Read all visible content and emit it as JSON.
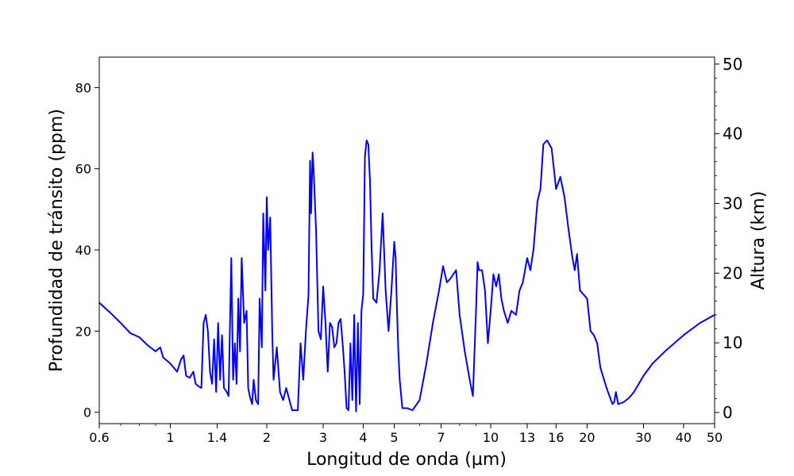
{
  "chart_data": {
    "type": "line",
    "xlabel": "Longitud de onda (µm)",
    "ylabel": "Profundidad de tránsito (ppm)",
    "ylabel_right": "Altura (km)",
    "x_scale": "log",
    "xlim": [
      0.6,
      50
    ],
    "ylim": [
      -2.8,
      87.5
    ],
    "ylim_right": [
      -1.6,
      51.0
    ],
    "x_ticks": [
      0.6,
      1,
      1.4,
      2,
      3,
      4,
      5,
      7,
      10,
      13,
      16,
      20,
      30,
      40,
      50
    ],
    "x_tick_labels": [
      "0.6",
      "1",
      "1.4",
      "2",
      "3",
      "4",
      "5",
      "7",
      "10",
      "13",
      "16",
      "20",
      "30",
      "40",
      "50"
    ],
    "y_ticks": [
      0,
      20,
      40,
      60,
      80
    ],
    "y_tick_labels": [
      "0",
      "20",
      "40",
      "60",
      "80"
    ],
    "y_right_ticks": [
      0,
      10,
      20,
      30,
      40,
      50
    ],
    "y_right_tick_labels": [
      "0",
      "10",
      "20",
      "30",
      "40",
      "50"
    ],
    "grid": false,
    "line_color": "#0000ff",
    "series": [
      {
        "x": [
          0.6,
          0.65,
          0.7,
          0.75,
          0.8,
          0.85,
          0.9,
          0.93,
          0.95,
          1.0,
          1.05,
          1.08,
          1.1,
          1.12,
          1.15,
          1.18,
          1.2,
          1.22,
          1.25,
          1.27,
          1.29,
          1.31,
          1.33,
          1.35,
          1.37,
          1.39,
          1.41,
          1.43,
          1.45,
          1.47,
          1.5,
          1.52,
          1.55,
          1.57,
          1.59,
          1.61,
          1.63,
          1.65,
          1.67,
          1.7,
          1.73,
          1.75,
          1.77,
          1.8,
          1.82,
          1.85,
          1.88,
          1.9,
          1.93,
          1.95,
          1.98,
          2.0,
          2.02,
          2.05,
          2.08,
          2.1,
          2.15,
          2.2,
          2.25,
          2.3,
          2.4,
          2.5,
          2.55,
          2.6,
          2.65,
          2.7,
          2.73,
          2.75,
          2.78,
          2.8,
          2.85,
          2.9,
          2.95,
          3.0,
          3.05,
          3.1,
          3.15,
          3.2,
          3.25,
          3.3,
          3.35,
          3.4,
          3.45,
          3.5,
          3.55,
          3.6,
          3.65,
          3.7,
          3.75,
          3.8,
          3.85,
          3.9,
          3.95,
          4.0,
          4.05,
          4.1,
          4.15,
          4.2,
          4.25,
          4.3,
          4.4,
          4.5,
          4.6,
          4.7,
          4.8,
          4.9,
          5.0,
          5.05,
          5.1,
          5.15,
          5.2,
          5.3,
          5.4,
          5.5,
          5.7,
          6.0,
          6.3,
          6.6,
          6.9,
          7.1,
          7.3,
          7.5,
          7.8,
          8.0,
          8.3,
          8.6,
          8.8,
          9.0,
          9.1,
          9.2,
          9.4,
          9.6,
          9.8,
          10.0,
          10.2,
          10.4,
          10.6,
          10.8,
          11.0,
          11.3,
          11.6,
          12.0,
          12.3,
          12.6,
          13.0,
          13.3,
          13.6,
          14.0,
          14.3,
          14.6,
          15.0,
          15.5,
          16.0,
          16.5,
          17.0,
          17.5,
          18.0,
          18.3,
          18.6,
          19.0,
          19.5,
          20.0,
          20.5,
          21.0,
          21.5,
          22.0,
          23.0,
          24.0,
          24.3,
          24.6,
          25.0,
          26.0,
          27.0,
          28.0,
          30.0,
          32.0,
          35.0,
          40.0,
          45.0,
          50.0
        ],
        "y": [
          27,
          24.5,
          22,
          19.5,
          18.5,
          16.5,
          15,
          16,
          13.5,
          12,
          10,
          13,
          14,
          9,
          8.5,
          10,
          7,
          6.5,
          6,
          22,
          24,
          20,
          10,
          7,
          18,
          5,
          22,
          8,
          19,
          6,
          5,
          4,
          38,
          8,
          17,
          7,
          28,
          15,
          38,
          22,
          25,
          6,
          4,
          2,
          8,
          3,
          2,
          28,
          16,
          49,
          30,
          53,
          40,
          48,
          20,
          8,
          16,
          5,
          3,
          6,
          0.5,
          0.5,
          17,
          8,
          20,
          29,
          62,
          49,
          64,
          60,
          45,
          20,
          18,
          31,
          22,
          10,
          22,
          21,
          16,
          17,
          22,
          23,
          17,
          10,
          1,
          0.5,
          17,
          3,
          24,
          0.2,
          22,
          2,
          25,
          29,
          63,
          67,
          66,
          57,
          40,
          28,
          27,
          35,
          49,
          30,
          20,
          30,
          42,
          38,
          25,
          15,
          8,
          1,
          1,
          1,
          0.5,
          3,
          12,
          22,
          30,
          36,
          32,
          33,
          35,
          24,
          15,
          8,
          4,
          25,
          37,
          35,
          35,
          30,
          17,
          25,
          34,
          31,
          34,
          28,
          25,
          22,
          25,
          24,
          30,
          32,
          38,
          35,
          40,
          52,
          55,
          66,
          67,
          65,
          55,
          58,
          53,
          45,
          38,
          35,
          39,
          30,
          29,
          28,
          20,
          19,
          17,
          11,
          6,
          2,
          2.5,
          5,
          2,
          2.5,
          3.5,
          5,
          9,
          12,
          15,
          19,
          22,
          24
        ]
      }
    ]
  }
}
